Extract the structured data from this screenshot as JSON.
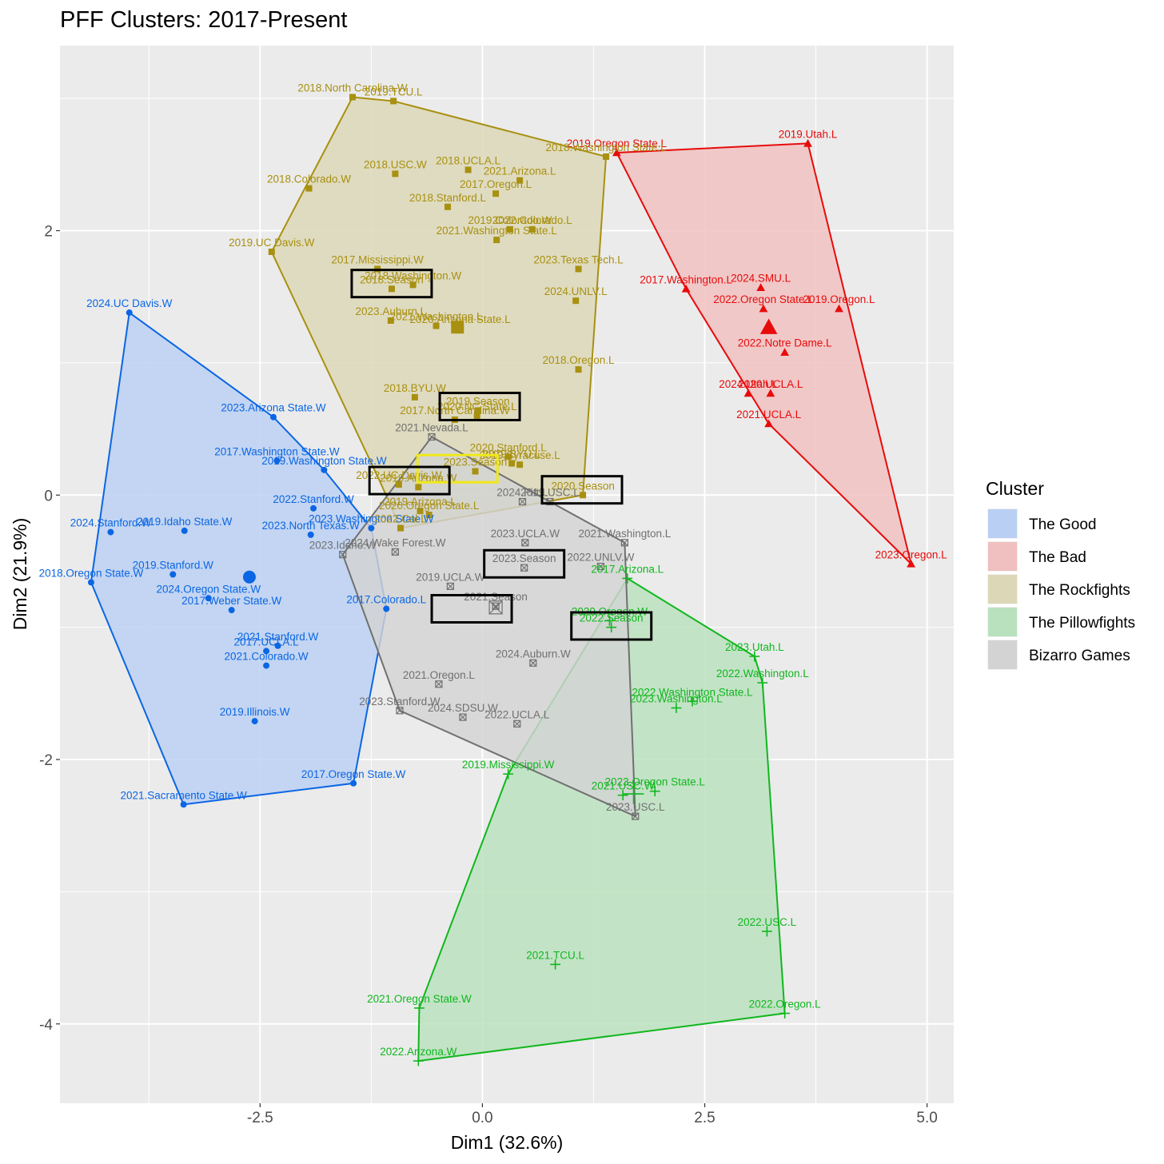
{
  "chart_data": {
    "type": "scatter",
    "title": "PFF Clusters: 2017-Present",
    "xlabel": "Dim1 (32.6%)",
    "ylabel": "Dim2 (21.9%)",
    "xlim": [
      -4.75,
      5.3
    ],
    "ylim": [
      -4.6,
      3.4
    ],
    "x_ticks": [
      {
        "v": -2.5,
        "label": "-2.5"
      },
      {
        "v": 0,
        "label": "0.0"
      },
      {
        "v": 2.5,
        "label": "2.5"
      },
      {
        "v": 5,
        "label": "5.0"
      }
    ],
    "y_ticks": [
      {
        "v": 2,
        "label": "2"
      },
      {
        "v": 0,
        "label": "0"
      },
      {
        "v": -2,
        "label": "-2"
      },
      {
        "v": -4,
        "label": "-4"
      }
    ],
    "grid": true,
    "legend": {
      "title": "Cluster",
      "position": "right"
    },
    "series": [
      {
        "name": "The Good",
        "key": "good",
        "color": "#0b66e4",
        "fill": "#b9cff3",
        "shape": "circle",
        "hull": [
          [
            -3.97,
            1.38
          ],
          [
            -2.35,
            0.59
          ],
          [
            -1.78,
            0.19
          ],
          [
            -1.25,
            -0.25
          ],
          [
            -1.08,
            -0.86
          ],
          [
            -1.45,
            -2.18
          ],
          [
            -3.36,
            -2.34
          ],
          [
            -4.4,
            -0.66
          ]
        ],
        "centroid": [
          -2.62,
          -0.62
        ],
        "points": [
          {
            "label": "2024.UC Davis.W",
            "x": -3.97,
            "y": 1.38
          },
          {
            "label": "2023.Arizona State.W",
            "x": -2.35,
            "y": 0.59
          },
          {
            "label": "2017.Washington State.W",
            "x": -2.31,
            "y": 0.26
          },
          {
            "label": "2019.Washington State.W",
            "x": -1.78,
            "y": 0.19
          },
          {
            "label": "2022.Stanford.W",
            "x": -1.9,
            "y": -0.1
          },
          {
            "label": "2023.Washington State.W",
            "x": -1.25,
            "y": -0.25
          },
          {
            "label": "2023.North Texas.W",
            "x": -1.93,
            "y": -0.3
          },
          {
            "label": "2024.Stanford.W",
            "x": -4.18,
            "y": -0.28
          },
          {
            "label": "2019.Idaho State.W",
            "x": -3.35,
            "y": -0.27
          },
          {
            "label": "2018.Oregon State.W",
            "x": -4.4,
            "y": -0.66
          },
          {
            "label": "2019.Stanford.W",
            "x": -3.48,
            "y": -0.6
          },
          {
            "label": "2024.Oregon State.W",
            "x": -3.08,
            "y": -0.78
          },
          {
            "label": "2017.Weber State.W",
            "x": -2.82,
            "y": -0.87
          },
          {
            "label": "2017.Colorado.L",
            "x": -1.08,
            "y": -0.86
          },
          {
            "label": "2021.Stanford.W",
            "x": -2.3,
            "y": -1.14
          },
          {
            "label": "2017.UCLA.L",
            "x": -2.43,
            "y": -1.18
          },
          {
            "label": "2021.Colorado.W",
            "x": -2.43,
            "y": -1.29
          },
          {
            "label": "2019.Illinois.W",
            "x": -2.56,
            "y": -1.71
          },
          {
            "label": "2017.Oregon State.W",
            "x": -1.45,
            "y": -2.18
          },
          {
            "label": "2021.Sacramento State.W",
            "x": -3.36,
            "y": -2.34
          }
        ]
      },
      {
        "name": "The Bad",
        "key": "bad",
        "color": "#e80b0b",
        "fill": "#f0bfbf",
        "shape": "triangle",
        "hull": [
          [
            1.51,
            2.59
          ],
          [
            3.66,
            2.66
          ],
          [
            4.82,
            -0.52
          ],
          [
            3.22,
            0.54
          ],
          [
            2.29,
            1.56
          ]
        ],
        "centroid": [
          3.22,
          1.27
        ],
        "points": [
          {
            "label": "2019.Oregon State.L",
            "x": 1.51,
            "y": 2.59
          },
          {
            "label": "2019.Utah.L",
            "x": 3.66,
            "y": 2.66
          },
          {
            "label": "2017.Washington.L",
            "x": 2.29,
            "y": 1.56
          },
          {
            "label": "2024.SMU.L",
            "x": 3.13,
            "y": 1.57
          },
          {
            "label": "2022.Oregon State.L",
            "x": 3.16,
            "y": 1.41
          },
          {
            "label": "2019.Oregon.L",
            "x": 4.01,
            "y": 1.41
          },
          {
            "label": "2022.Notre Dame.L",
            "x": 3.4,
            "y": 1.08
          },
          {
            "label": "2024.Utah.L",
            "x": 2.99,
            "y": 0.77
          },
          {
            "label": "2020.UCLA.L",
            "x": 3.24,
            "y": 0.77
          },
          {
            "label": "2021.UCLA.L",
            "x": 3.22,
            "y": 0.54
          },
          {
            "label": "2023.Oregon.L",
            "x": 4.82,
            "y": -0.52
          }
        ]
      },
      {
        "name": "The Rockfights",
        "key": "rock",
        "color": "#a89010",
        "fill": "#dcd7b6",
        "shape": "square",
        "hull": [
          [
            -1.46,
            3.01
          ],
          [
            -1.0,
            2.98
          ],
          [
            1.39,
            2.56
          ],
          [
            1.13,
            0.0
          ],
          [
            -0.92,
            -0.25
          ],
          [
            -1.15,
            0.1
          ],
          [
            -2.37,
            1.84
          ]
        ],
        "centroid": [
          -0.28,
          1.27
        ],
        "points": [
          {
            "label": "2018.North Carolina.W",
            "x": -1.46,
            "y": 3.01
          },
          {
            "label": "2019.TCU.L",
            "x": -1.0,
            "y": 2.98
          },
          {
            "label": "2018.Washington State.L",
            "x": 1.39,
            "y": 2.56
          },
          {
            "label": "2018.UCLA.L",
            "x": -0.16,
            "y": 2.46
          },
          {
            "label": "2018.USC.W",
            "x": -0.98,
            "y": 2.43
          },
          {
            "label": "2021.Arizona.L",
            "x": 0.42,
            "y": 2.38
          },
          {
            "label": "2018.Colorado.W",
            "x": -1.95,
            "y": 2.32
          },
          {
            "label": "2017.Oregon.L",
            "x": 0.15,
            "y": 2.28
          },
          {
            "label": "2018.Stanford.L",
            "x": -0.39,
            "y": 2.18
          },
          {
            "label": "2019.Colorado.W",
            "x": 0.31,
            "y": 2.01
          },
          {
            "label": "2022.Colorado.L",
            "x": 0.56,
            "y": 2.01
          },
          {
            "label": "2021.Washington State.L",
            "x": 0.16,
            "y": 1.93
          },
          {
            "label": "2019.UC Davis.W",
            "x": -2.37,
            "y": 1.84
          },
          {
            "label": "2017.Mississippi.W",
            "x": -1.18,
            "y": 1.71
          },
          {
            "label": "2023.Texas Tech.L",
            "x": 1.08,
            "y": 1.71
          },
          {
            "label": "2018.Washington.W",
            "x": -0.78,
            "y": 1.59
          },
          {
            "label": "2018.Season",
            "x": -1.02,
            "y": 1.56,
            "season": true
          },
          {
            "label": "2024.UNLV.L",
            "x": 1.05,
            "y": 1.47
          },
          {
            "label": "2023.Auburn.L",
            "x": -1.03,
            "y": 1.32
          },
          {
            "label": "2021.Washington.L",
            "x": -0.52,
            "y": 1.28
          },
          {
            "label": "2020.Arizona State.L",
            "x": -0.25,
            "y": 1.26
          },
          {
            "label": "2018.Oregon.L",
            "x": 1.08,
            "y": 0.95
          },
          {
            "label": "2018.BYU.W",
            "x": -0.76,
            "y": 0.74
          },
          {
            "label": "2017.North Carolina.W",
            "x": -0.31,
            "y": 0.57
          },
          {
            "label": "2019.Season",
            "x": -0.05,
            "y": 0.64,
            "season": true
          },
          {
            "label": "2020.NC State.L",
            "x": -0.06,
            "y": 0.6
          },
          {
            "label": "2020.Stanford.L",
            "x": 0.29,
            "y": 0.29
          },
          {
            "label": "2019.BYU.L",
            "x": 0.33,
            "y": 0.24
          },
          {
            "label": "2019.Syracuse.L",
            "x": 0.42,
            "y": 0.23
          },
          {
            "label": "2023.Season",
            "x": -0.08,
            "y": 0.18,
            "season": true
          },
          {
            "label": "2022.UC Davis.W",
            "x": -0.94,
            "y": 0.08
          },
          {
            "label": "2019.Arizona.W",
            "x": -0.72,
            "y": 0.06
          },
          {
            "label": "2020.Season",
            "x": 1.13,
            "y": 0.0,
            "season": true
          },
          {
            "label": "2019.Arizona.L",
            "x": -0.7,
            "y": -0.12
          },
          {
            "label": "2020.Oregon State.L",
            "x": -0.6,
            "y": -0.15
          },
          {
            "label": "2022.Cal.L",
            "x": -0.92,
            "y": -0.25
          }
        ]
      },
      {
        "name": "The Pillowfights",
        "key": "pillow",
        "color": "#10b71e",
        "fill": "#b9e1bd",
        "shape": "plus",
        "hull": [
          [
            1.63,
            -0.63
          ],
          [
            3.06,
            -1.22
          ],
          [
            3.15,
            -1.42
          ],
          [
            3.4,
            -3.92
          ],
          [
            -0.72,
            -4.28
          ],
          [
            -0.71,
            -3.88
          ],
          [
            0.29,
            -2.11
          ]
        ],
        "centroid": [
          1.7,
          -2.26
        ],
        "points": [
          {
            "label": "2017.Arizona.L",
            "x": 1.63,
            "y": -0.63
          },
          {
            "label": "2020.Oregon.W",
            "x": 1.43,
            "y": -0.95
          },
          {
            "label": "2022.Season",
            "x": 1.45,
            "y": -1.0,
            "season": true
          },
          {
            "label": "2023.Utah.L",
            "x": 3.06,
            "y": -1.22
          },
          {
            "label": "2022.Washington.L",
            "x": 3.15,
            "y": -1.42
          },
          {
            "label": "2022.Washington State.L",
            "x": 2.36,
            "y": -1.56
          },
          {
            "label": "2023.Washington.L",
            "x": 2.18,
            "y": -1.61
          },
          {
            "label": "2019.Mississippi.W",
            "x": 0.29,
            "y": -2.11
          },
          {
            "label": "2023.Oregon State.L",
            "x": 1.94,
            "y": -2.24
          },
          {
            "label": "2021.USC.W",
            "x": 1.58,
            "y": -2.27
          },
          {
            "label": "2022.USC.L",
            "x": 3.2,
            "y": -3.3
          },
          {
            "label": "2021.TCU.L",
            "x": 0.82,
            "y": -3.55
          },
          {
            "label": "2021.Oregon State.W",
            "x": -0.71,
            "y": -3.88
          },
          {
            "label": "2022.Oregon.L",
            "x": 3.4,
            "y": -3.92
          },
          {
            "label": "2022.Arizona.W",
            "x": -0.72,
            "y": -4.28
          }
        ]
      },
      {
        "name": "Bizarro Games",
        "key": "bizarro",
        "color": "#707070",
        "fill": "#d3d3d3",
        "shape": "boxx",
        "hull": [
          [
            -0.57,
            0.44
          ],
          [
            1.6,
            -0.36
          ],
          [
            1.72,
            -2.43
          ],
          [
            -0.93,
            -1.63
          ],
          [
            -1.57,
            -0.45
          ]
        ],
        "centroid": [
          0.15,
          -0.85
        ],
        "points": [
          {
            "label": "2021.Nevada.L",
            "x": -0.57,
            "y": 0.44
          },
          {
            "label": "2024.Pitt.L",
            "x": 0.45,
            "y": -0.05
          },
          {
            "label": "2019.USC.L",
            "x": 0.76,
            "y": -0.05
          },
          {
            "label": "2023.UCLA.W",
            "x": 0.48,
            "y": -0.36
          },
          {
            "label": "2021.Washington.L",
            "x": 1.6,
            "y": -0.36
          },
          {
            "label": "2024.Wake Forest.W",
            "x": -0.98,
            "y": -0.43
          },
          {
            "label": "2023.Idaho.W",
            "x": -1.57,
            "y": -0.45
          },
          {
            "label": "2022.UNLV.W",
            "x": 1.33,
            "y": -0.54
          },
          {
            "label": "2023.Season",
            "x": 0.47,
            "y": -0.55,
            "season": true
          },
          {
            "label": "2019.UCLA.W",
            "x": -0.36,
            "y": -0.69
          },
          {
            "label": "2021.Season",
            "x": 0.15,
            "y": -0.84,
            "season": true
          },
          {
            "label": "2024.Auburn.W",
            "x": 0.57,
            "y": -1.27
          },
          {
            "label": "2021.Oregon.L",
            "x": -0.49,
            "y": -1.43
          },
          {
            "label": "2023.Stanford.W",
            "x": -0.93,
            "y": -1.63
          },
          {
            "label": "2024.SDSU.W",
            "x": -0.22,
            "y": -1.68
          },
          {
            "label": "2022.UCLA.L",
            "x": 0.39,
            "y": -1.73
          },
          {
            "label": "2023.USC.L",
            "x": 1.72,
            "y": -2.43
          }
        ]
      }
    ],
    "season_boxes": [
      {
        "label": "2018.Season",
        "x": -1.02,
        "y": 1.6,
        "color": "#000000"
      },
      {
        "label": "2019.Season",
        "x": -0.03,
        "y": 0.67,
        "color": "#000000"
      },
      {
        "label": "2024.Season",
        "x": -0.28,
        "y": 0.2,
        "color": "#f0e818"
      },
      {
        "label": "2022.Season",
        "x": -0.82,
        "y": 0.11,
        "color": "#000000"
      },
      {
        "label": "2020.Season",
        "x": 1.12,
        "y": 0.04,
        "color": "#000000"
      },
      {
        "label": "2023.Season",
        "x": 0.47,
        "y": -0.52,
        "color": "#000000"
      },
      {
        "label": "2021.Season",
        "x": -0.12,
        "y": -0.86,
        "color": "#000000"
      },
      {
        "label": "2022.Season",
        "x": 1.45,
        "y": -0.99,
        "color": "#000000"
      }
    ]
  }
}
